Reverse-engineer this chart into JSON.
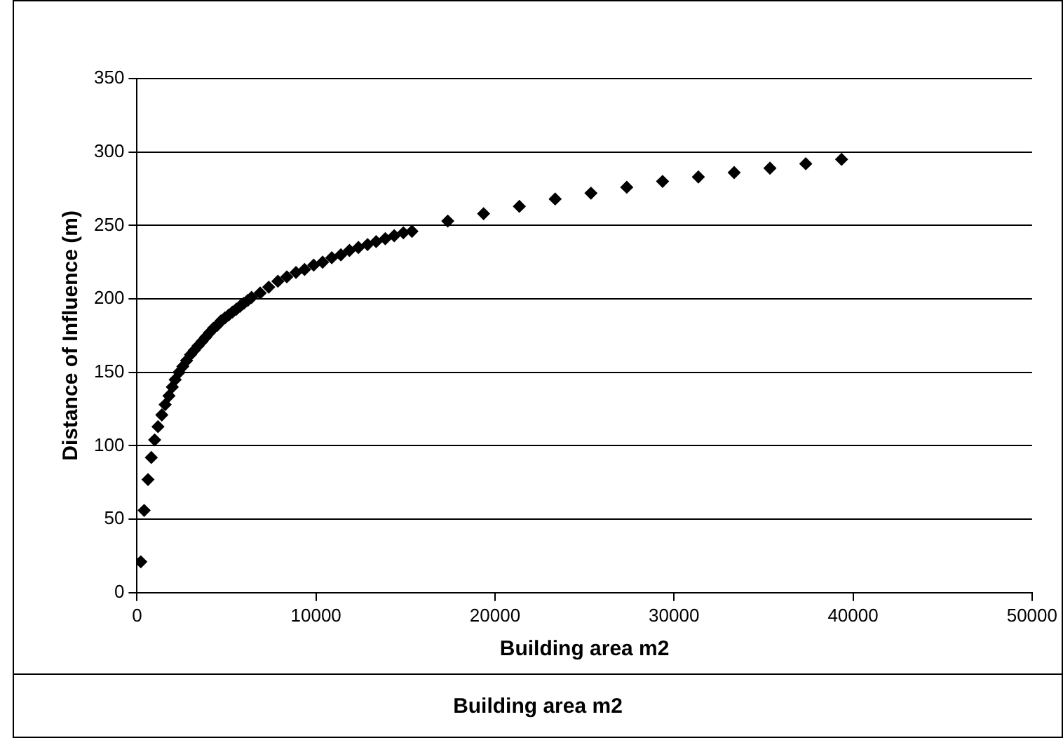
{
  "chart_data": {
    "type": "scatter",
    "xlabel": "Building area m2",
    "ylabel": "Distance of Influence (m)",
    "x": [
      213,
      400,
      613,
      800,
      987,
      1173,
      1387,
      1573,
      1787,
      1973,
      2133,
      2350,
      2560,
      2770,
      2990,
      3200,
      3410,
      3630,
      3840,
      4050,
      4270,
      4480,
      4690,
      4910,
      5120,
      5330,
      5550,
      5760,
      5970,
      6190,
      6400,
      6880,
      7360,
      7870,
      8370,
      8880,
      9360,
      9870,
      10370,
      10880,
      11390,
      11870,
      12370,
      12880,
      13360,
      13870,
      14370,
      14880,
      15360,
      17360,
      19360,
      21360,
      23360,
      25360,
      27360,
      29360,
      31360,
      33360,
      35360,
      37360,
      39360
    ],
    "series": [
      {
        "color": "#000000",
        "values": [
          21,
          56,
          77,
          92,
          104,
          113,
          121,
          128,
          134,
          140,
          145,
          150,
          154,
          158,
          162,
          165,
          168,
          171,
          174,
          177,
          180,
          182,
          185,
          187,
          189,
          191,
          193,
          195,
          197,
          199,
          201,
          204,
          208,
          212,
          215,
          218,
          220,
          223,
          225,
          228,
          230,
          233,
          235,
          237,
          239,
          241,
          243,
          245,
          246,
          253,
          258,
          263,
          268,
          272,
          276,
          280,
          283,
          286,
          289,
          292,
          295
        ]
      }
    ],
    "xlim": [
      0,
      50000
    ],
    "xticks": [
      0,
      10000,
      20000,
      30000,
      40000,
      50000
    ],
    "ylim": [
      0,
      350
    ],
    "yticks": [
      0,
      50,
      100,
      150,
      200,
      250,
      300,
      350
    ],
    "grid": "y",
    "legend": false,
    "marker": "diamond",
    "annotations": [
      "Building area m2"
    ]
  }
}
